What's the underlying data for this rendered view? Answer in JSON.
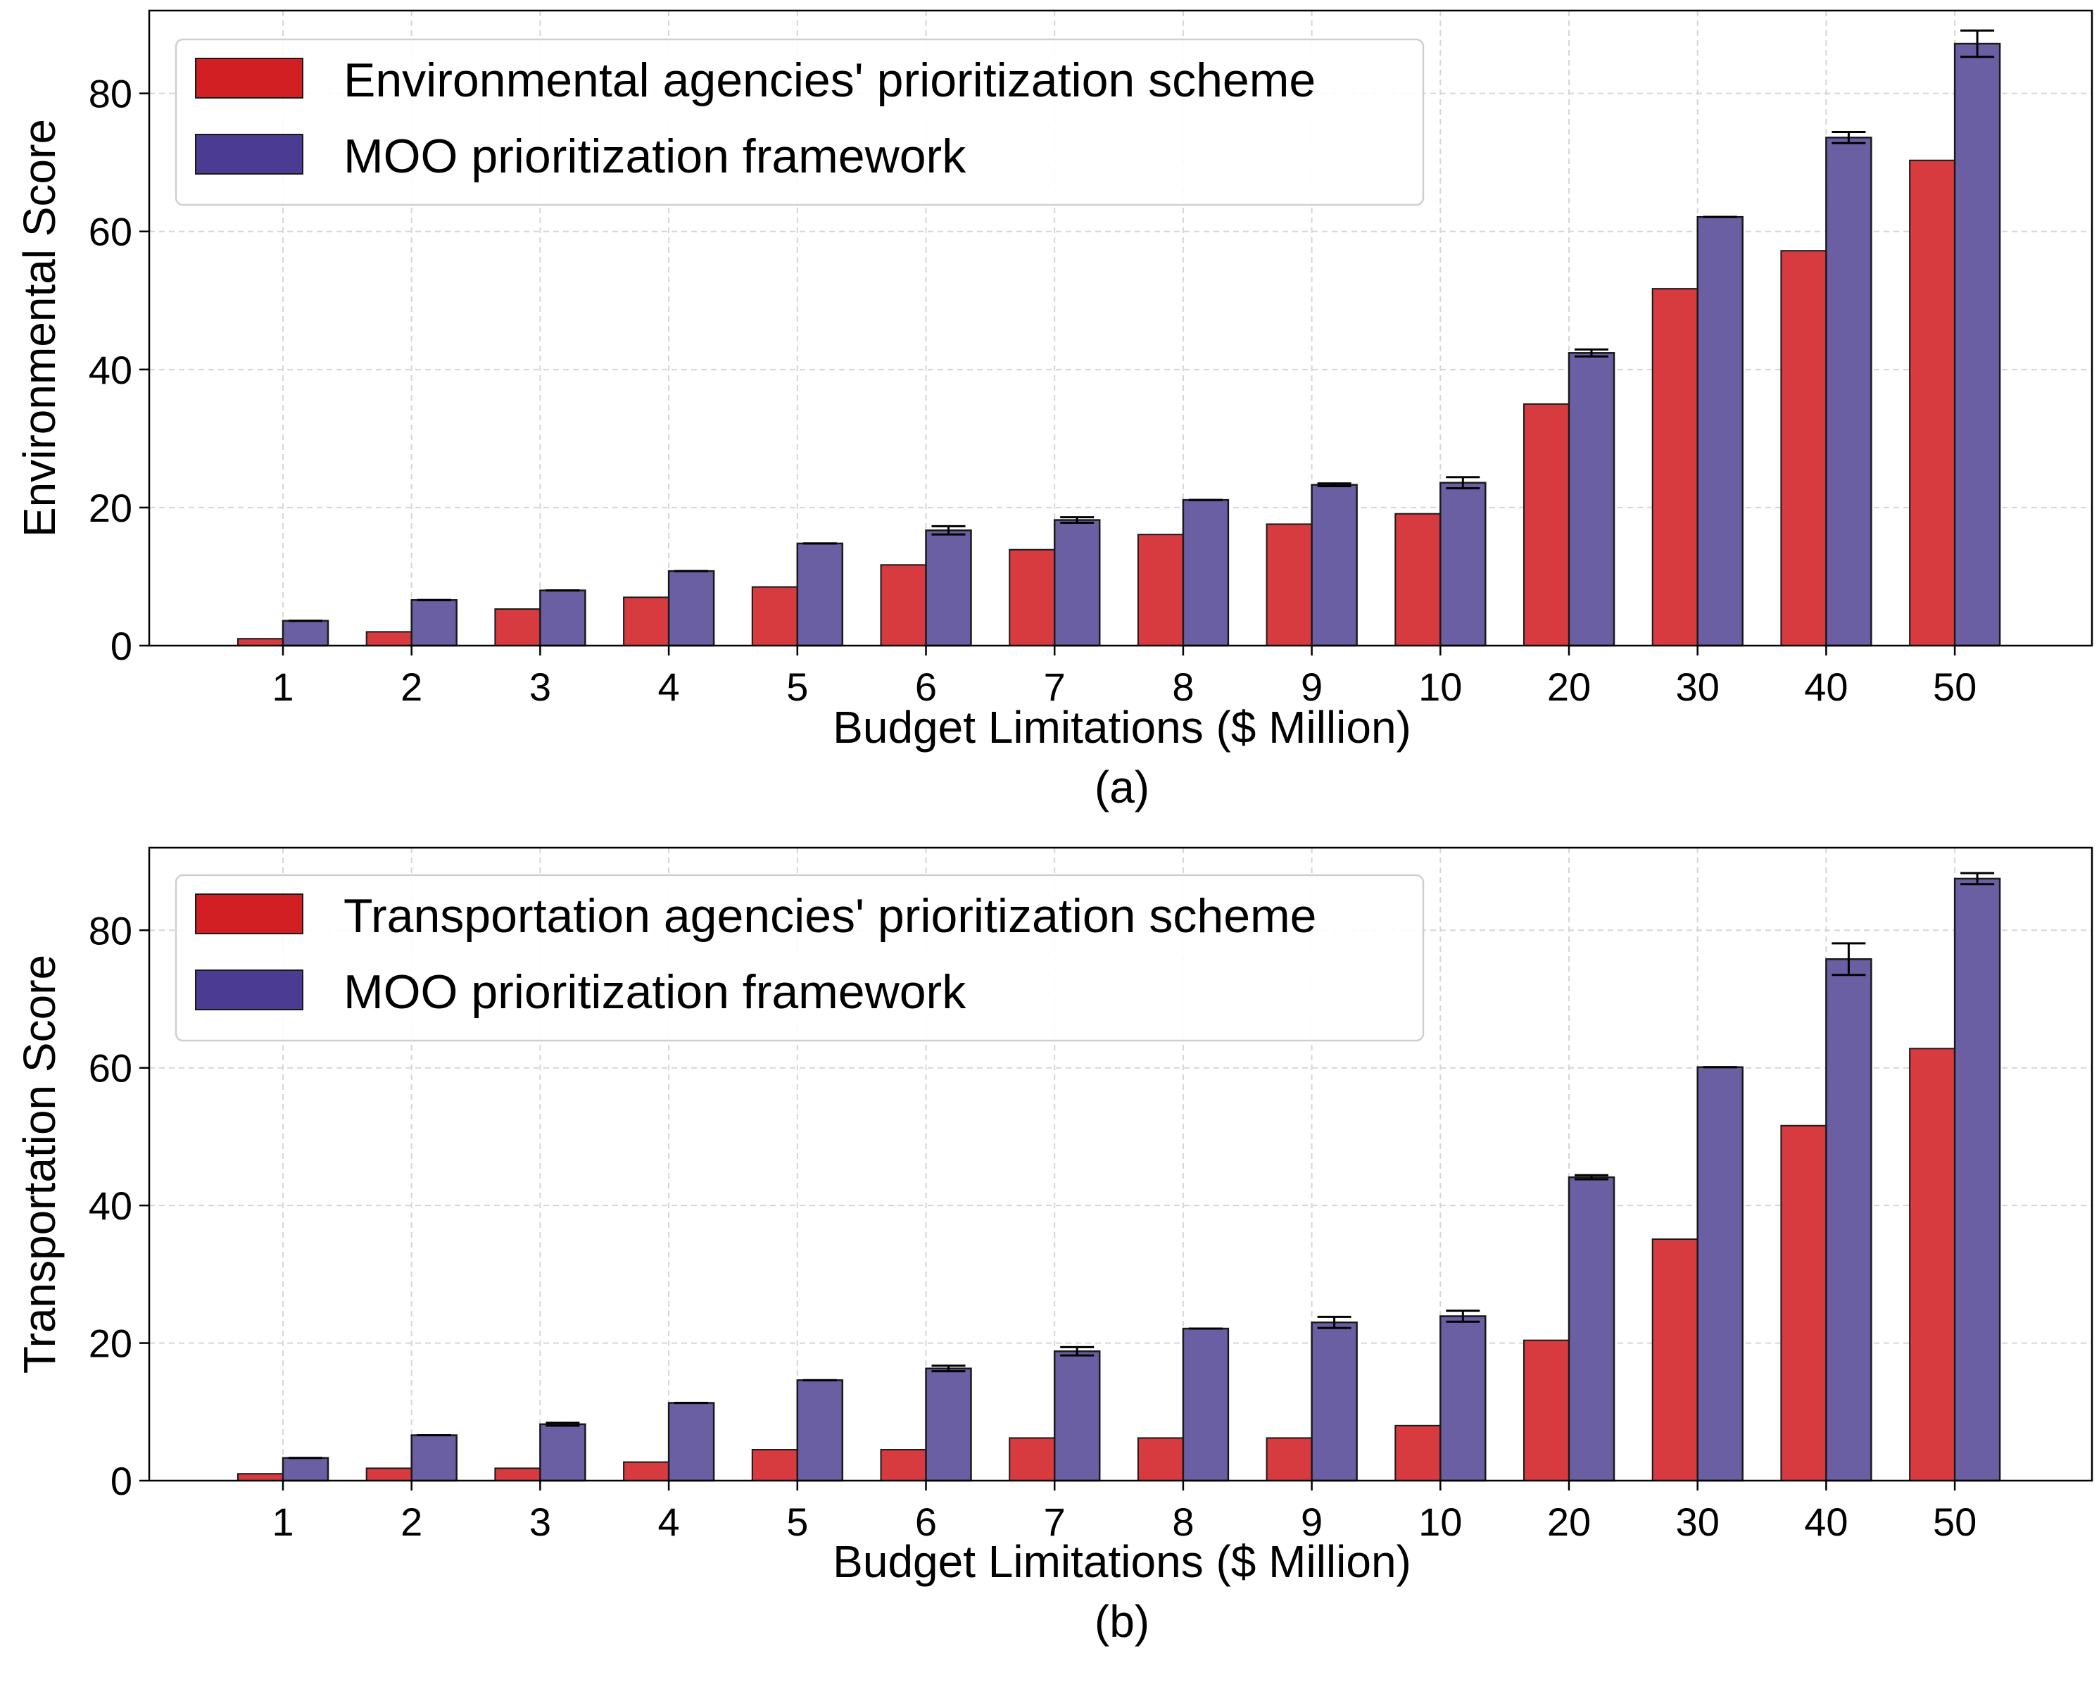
{
  "colors": {
    "agency": "#d73a3f",
    "agency_legend": "#d11f24",
    "moo": "#6a5fa3",
    "moo_legend": "#4b3b92",
    "grid": "#d6d6d6",
    "bar_edge": "#1a1a1a"
  },
  "chart_data": [
    {
      "type": "bar",
      "panel_caption": "(a)",
      "categories": [
        "1",
        "2",
        "3",
        "4",
        "5",
        "6",
        "7",
        "8",
        "9",
        "10",
        "20",
        "30",
        "40",
        "50"
      ],
      "xlabel": "Budget Limitations ($ Million)",
      "ylabel": "Environmental Score",
      "ylim": [
        0,
        92
      ],
      "yticks": [
        0,
        20,
        40,
        60,
        80
      ],
      "grid": true,
      "legend_position": "top-left",
      "series": [
        {
          "name": "Environmental agencies' prioritization scheme",
          "values": [
            1.0,
            2.0,
            5.3,
            7.0,
            8.5,
            11.7,
            13.9,
            16.1,
            17.6,
            19.1,
            35.0,
            51.7,
            57.2,
            70.3
          ],
          "errors": null
        },
        {
          "name": "MOO prioritization framework",
          "values": [
            3.6,
            6.6,
            8.0,
            10.8,
            14.8,
            16.7,
            18.2,
            21.1,
            23.3,
            23.6,
            42.4,
            62.1,
            73.6,
            87.2
          ],
          "errors": [
            0,
            0,
            0,
            0,
            0,
            0.6,
            0.4,
            0,
            0.2,
            0.8,
            0.5,
            0,
            0.8,
            1.9
          ]
        }
      ]
    },
    {
      "type": "bar",
      "panel_caption": "(b)",
      "categories": [
        "1",
        "2",
        "3",
        "4",
        "5",
        "6",
        "7",
        "8",
        "9",
        "10",
        "20",
        "30",
        "40",
        "50"
      ],
      "xlabel": "Budget Limitations ($ Million)",
      "ylabel": "Transportation Score",
      "ylim": [
        0,
        92
      ],
      "yticks": [
        0,
        20,
        40,
        60,
        80
      ],
      "grid": true,
      "legend_position": "top-left",
      "series": [
        {
          "name": "Transportation agencies' prioritization scheme",
          "values": [
            1.0,
            1.8,
            1.8,
            2.7,
            4.5,
            4.5,
            6.2,
            6.2,
            6.2,
            8.0,
            20.4,
            35.1,
            51.6,
            62.8
          ],
          "errors": null
        },
        {
          "name": "MOO prioritization framework",
          "values": [
            3.3,
            6.6,
            8.2,
            11.3,
            14.6,
            16.3,
            18.8,
            22.1,
            23.0,
            23.9,
            44.1,
            60.1,
            75.8,
            87.5
          ],
          "errors": [
            0,
            0,
            0.2,
            0,
            0,
            0.4,
            0.6,
            0,
            0.8,
            0.8,
            0.3,
            0,
            2.3,
            0.8
          ]
        }
      ]
    }
  ]
}
